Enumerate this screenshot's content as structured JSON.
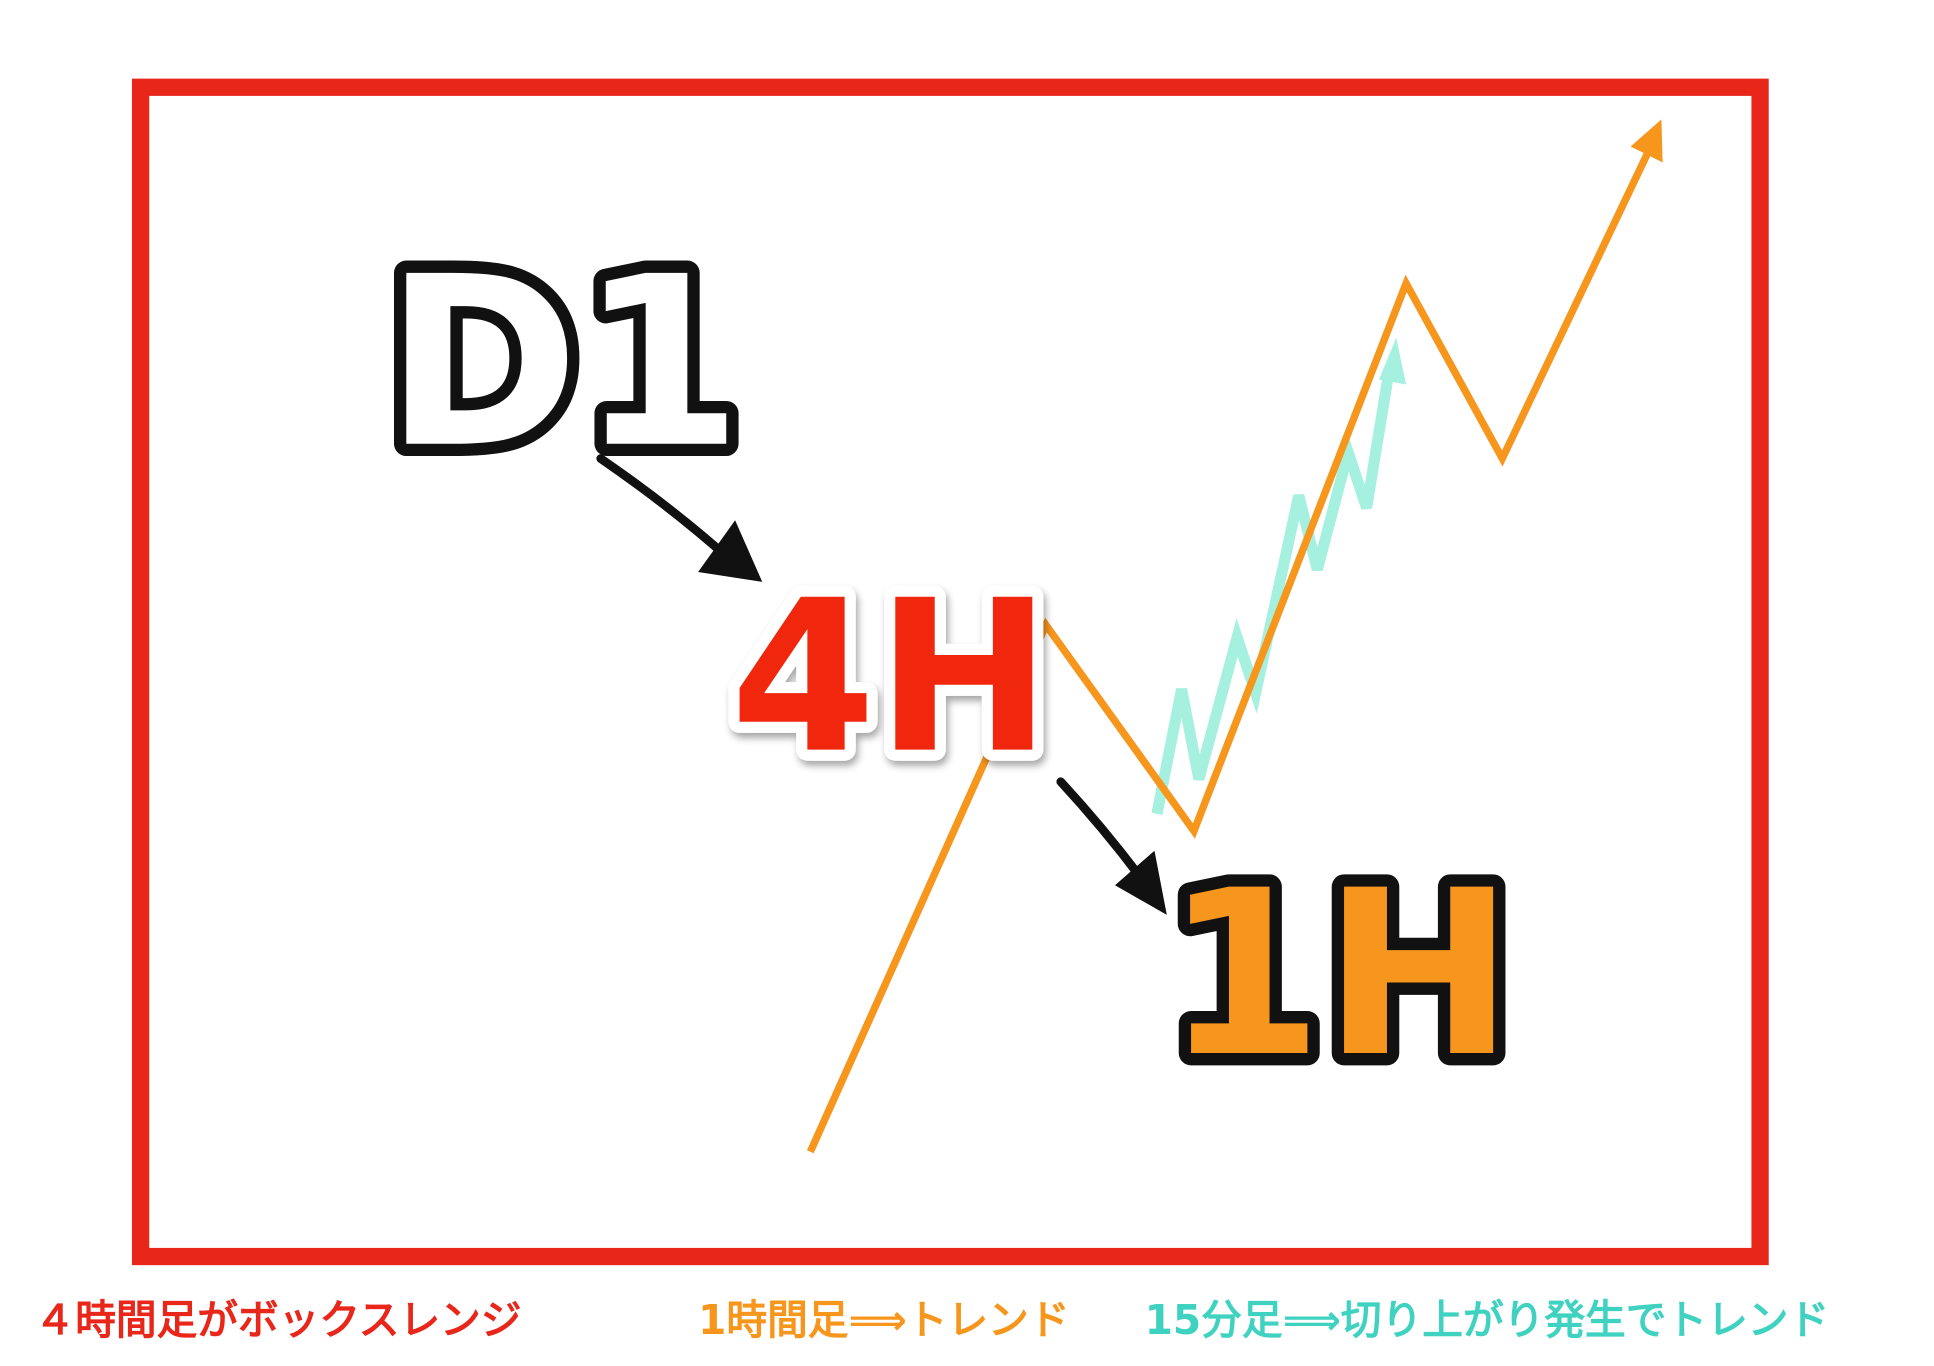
{
  "labels": {
    "d1": "D1",
    "h4": "4H",
    "h1": "1H"
  },
  "captions": [
    "４時間足がボックスレンジ",
    "1時間足⟹トレンド",
    "15分足⟹切り上がり発生でトレンド"
  ]
}
